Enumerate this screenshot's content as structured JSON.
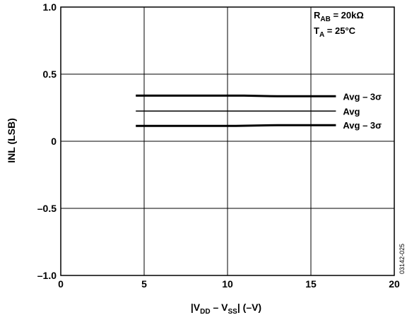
{
  "chart_data": {
    "type": "line",
    "xlabel": {
      "pre": "|V",
      "sub1": "DD",
      "mid": " – V",
      "sub2": "SS",
      "post": "| (–V)"
    },
    "ylabel": "INL (LSB)",
    "xlim": [
      0,
      20
    ],
    "ylim": [
      -1.0,
      1.0
    ],
    "x_ticks": [
      0,
      5,
      10,
      15,
      20
    ],
    "x_tick_labels": [
      "0",
      "5",
      "10",
      "15",
      "20"
    ],
    "y_ticks": [
      1.0,
      0.5,
      0,
      -0.5,
      -1.0
    ],
    "y_tick_labels": [
      "1.0",
      "0.5",
      "0",
      "–0.5",
      "–1.0"
    ],
    "grid": true,
    "conditions": {
      "line1": {
        "pre": "R",
        "sub": "AB",
        "post": " = 20kΩ"
      },
      "line2": {
        "pre": "T",
        "sub": "A",
        "post": " = 25°C"
      }
    },
    "figure_id": "03142-025",
    "series": [
      {
        "label": "Avg – 3σ",
        "stroke": "#000000",
        "weight": "thick",
        "x": [
          4.5,
          8,
          11,
          13,
          16.5
        ],
        "y": [
          0.34,
          0.34,
          0.34,
          0.335,
          0.335
        ]
      },
      {
        "label": "Avg",
        "stroke": "#000000",
        "weight": "thin",
        "x": [
          4.5,
          8,
          11,
          13,
          16.5
        ],
        "y": [
          0.225,
          0.225,
          0.225,
          0.225,
          0.225
        ]
      },
      {
        "label": "Avg – 3σ",
        "stroke": "#000000",
        "weight": "thick",
        "x": [
          4.5,
          8,
          10.5,
          13,
          16.5
        ],
        "y": [
          0.115,
          0.115,
          0.115,
          0.12,
          0.12
        ]
      }
    ]
  }
}
